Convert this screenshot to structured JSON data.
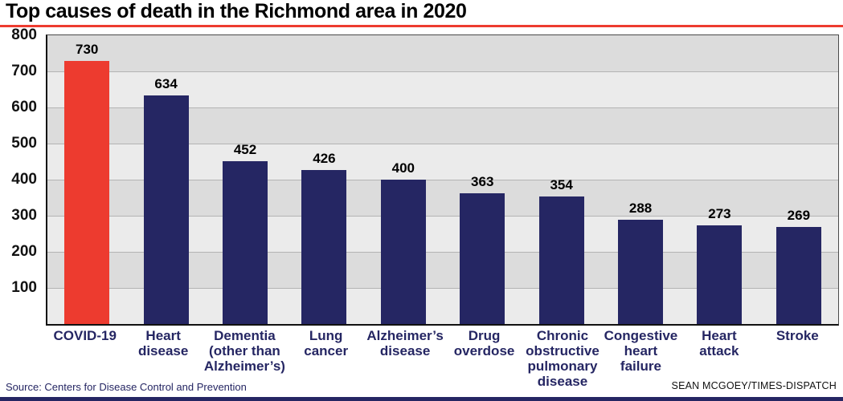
{
  "header": {
    "title": "Top causes of death in the Richmond area in 2020"
  },
  "footer": {
    "source": "Source: Centers for Disease Control and Prevention",
    "credit": "SEAN MCGOEY/TIMES-DISPATCH"
  },
  "colors": {
    "bar": "#252663",
    "highlight": "#ed3b2f",
    "accent_rule": "#ed3b2f",
    "band_dark": "#dcdcdc",
    "band_light": "#ebebeb"
  },
  "chart_data": {
    "type": "bar",
    "title": "Top causes of death in the Richmond area in 2020",
    "categories": [
      "COVID-19",
      "Heart disease",
      "Dementia (other than Alzheimer’s)",
      "Lung cancer",
      "Alzheimer’s disease",
      "Drug overdose",
      "Chronic obstructive pulmonary disease",
      "Congestive heart failure",
      "Heart attack",
      "Stroke"
    ],
    "values": [
      730,
      634,
      452,
      426,
      400,
      363,
      354,
      288,
      273,
      269
    ],
    "highlight_index": 0,
    "xlabel": "",
    "ylabel": "",
    "ylim": [
      0,
      800
    ],
    "ytick_step": 100,
    "yticks": [
      800,
      700,
      600,
      500,
      400,
      300,
      200,
      100
    ],
    "grid": "horizontal alternating bands with gridlines every 100",
    "legend": "none"
  }
}
